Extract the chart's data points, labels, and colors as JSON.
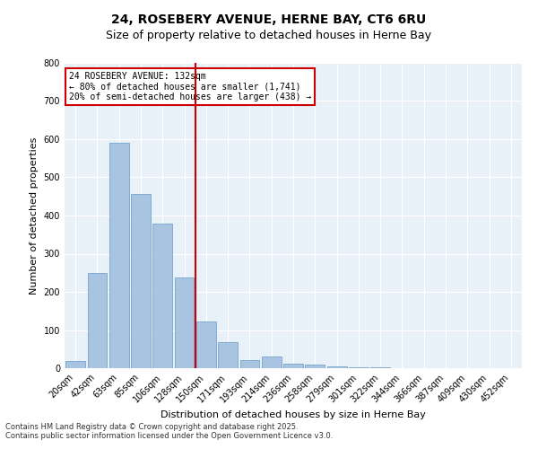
{
  "title_line1": "24, ROSEBERY AVENUE, HERNE BAY, CT6 6RU",
  "title_line2": "Size of property relative to detached houses in Herne Bay",
  "xlabel": "Distribution of detached houses by size in Herne Bay",
  "ylabel": "Number of detached properties",
  "categories": [
    "20sqm",
    "42sqm",
    "63sqm",
    "85sqm",
    "106sqm",
    "128sqm",
    "150sqm",
    "171sqm",
    "193sqm",
    "214sqm",
    "236sqm",
    "258sqm",
    "279sqm",
    "301sqm",
    "322sqm",
    "344sqm",
    "366sqm",
    "387sqm",
    "409sqm",
    "430sqm",
    "452sqm"
  ],
  "values": [
    18,
    250,
    590,
    456,
    378,
    238,
    123,
    68,
    22,
    30,
    12,
    10,
    5,
    3,
    2,
    0,
    1,
    0,
    0,
    0,
    1
  ],
  "bar_color": "#a8c4e0",
  "bar_edge_color": "#6699cc",
  "property_line_x": 5,
  "property_value": "132sqm",
  "annotation_title": "24 ROSEBERY AVENUE: 132sqm",
  "annotation_line2": "← 80% of detached houses are smaller (1,741)",
  "annotation_line3": "20% of semi-detached houses are larger (438) →",
  "annotation_box_color": "#ffffff",
  "annotation_box_edge_color": "#cc0000",
  "vline_color": "#cc0000",
  "ylim": [
    0,
    800
  ],
  "yticks": [
    0,
    100,
    200,
    300,
    400,
    500,
    600,
    700,
    800
  ],
  "background_color": "#e8f0f8",
  "grid_color": "#ffffff",
  "footer_line1": "Contains HM Land Registry data © Crown copyright and database right 2025.",
  "footer_line2": "Contains public sector information licensed under the Open Government Licence v3.0."
}
